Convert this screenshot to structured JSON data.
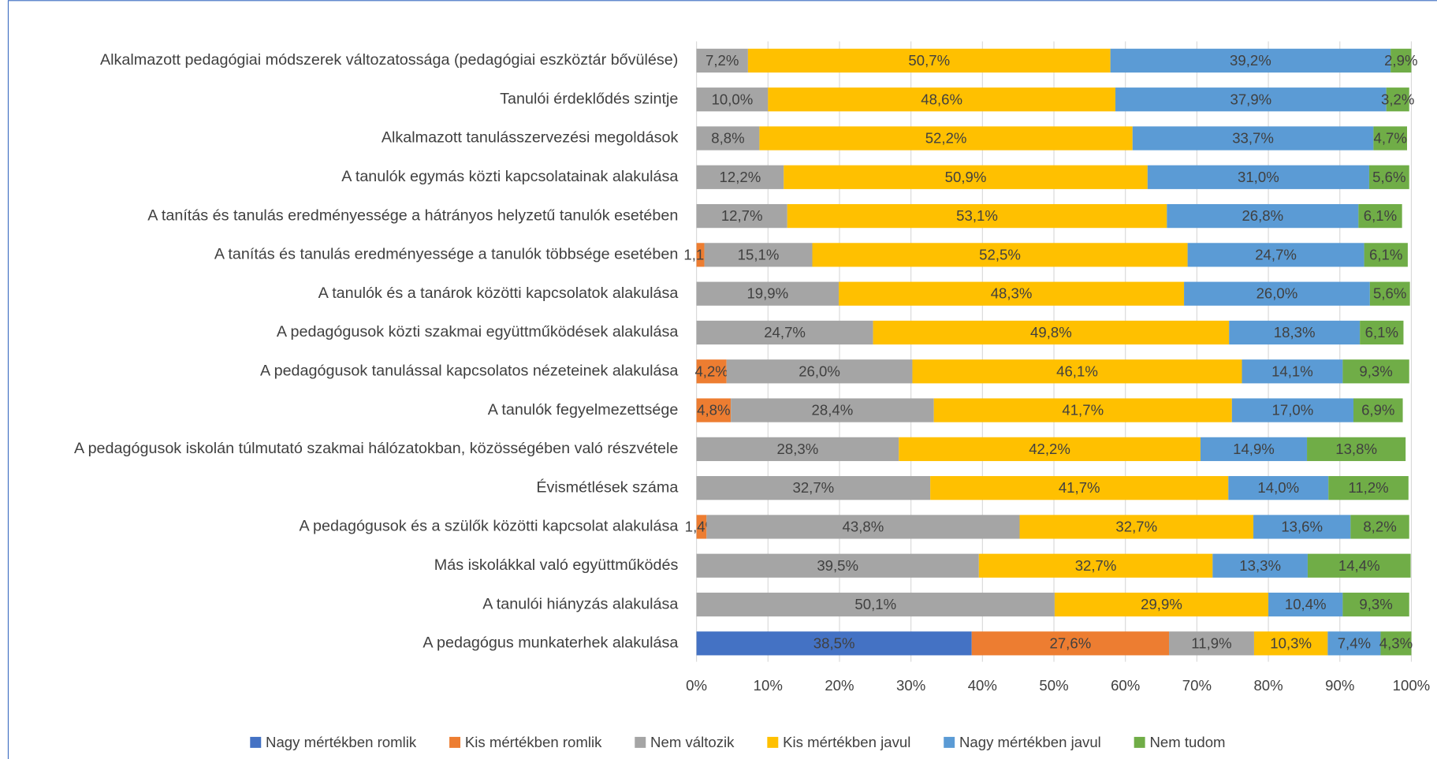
{
  "chart_data": {
    "type": "stacked_barh",
    "categories": [
      "Alkalmazott pedagógiai módszerek változatossága (pedagógiai eszköztár bővülése)",
      "Tanulói érdeklődés szintje",
      "Alkalmazott tanulásszervezési megoldások",
      "A tanulók egymás közti kapcsolatainak alakulása",
      "A tanítás és tanulás eredményessége a hátrányos helyzetű tanulók esetében",
      "A tanítás és tanulás eredményessége a tanulók többsége esetében",
      "A tanulók és a tanárok közötti kapcsolatok alakulása",
      "A pedagógusok közti szakmai együttműködések alakulása",
      "A pedagógusok tanulással kapcsolatos nézeteinek alakulása",
      "A tanulók fegyelmezettsége",
      "A pedagógusok iskolán túlmutató szakmai hálózatokban, közösségében való részvétele",
      "Évismétlések száma",
      "A pedagógusok és a szülők közötti kapcsolat alakulása",
      "Más iskolákkal való együttműködés",
      "A tanulói hiányzás alakulása",
      "A pedagógus munkaterhek alakulása"
    ],
    "series": [
      {
        "name": "Nagy mértékben romlik",
        "color": "#4472c4",
        "values": [
          null,
          null,
          null,
          null,
          null,
          null,
          null,
          null,
          null,
          null,
          null,
          null,
          null,
          null,
          null,
          38.5
        ],
        "value_labels": [
          null,
          null,
          null,
          null,
          null,
          null,
          null,
          null,
          null,
          null,
          null,
          null,
          null,
          null,
          null,
          "38,5%"
        ]
      },
      {
        "name": "Kis mértékben romlik",
        "color": "#ed7d31",
        "values": [
          null,
          null,
          null,
          null,
          null,
          1.1,
          null,
          null,
          4.2,
          4.8,
          null,
          null,
          1.4,
          null,
          null,
          27.6
        ],
        "value_labels": [
          null,
          null,
          null,
          null,
          null,
          "1,1%",
          null,
          null,
          "4,2%",
          "4,8%",
          null,
          null,
          "1,4%",
          null,
          null,
          "27,6%"
        ]
      },
      {
        "name": "Nem változik",
        "color": "#a5a5a5",
        "values": [
          7.2,
          10.0,
          8.8,
          12.2,
          12.7,
          15.1,
          19.9,
          24.7,
          26.0,
          28.4,
          28.3,
          32.7,
          43.8,
          39.5,
          50.1,
          11.9
        ],
        "value_labels": [
          "7,2%",
          "10,0%",
          "8,8%",
          "12,2%",
          "12,7%",
          "15,1%",
          "19,9%",
          "24,7%",
          "26,0%",
          "28,4%",
          "28,3%",
          "32,7%",
          "43,8%",
          "39,5%",
          "50,1%",
          "11,9%"
        ]
      },
      {
        "name": "Kis mértékben javul",
        "color": "#ffc000",
        "values": [
          50.7,
          48.6,
          52.2,
          50.9,
          53.1,
          52.5,
          48.3,
          49.8,
          46.1,
          41.7,
          42.2,
          41.7,
          32.7,
          32.7,
          29.9,
          10.3
        ],
        "value_labels": [
          "50,7%",
          "48,6%",
          "52,2%",
          "50,9%",
          "53,1%",
          "52,5%",
          "48,3%",
          "49,8%",
          "46,1%",
          "41,7%",
          "42,2%",
          "41,7%",
          "32,7%",
          "32,7%",
          "29,9%",
          "10,3%"
        ]
      },
      {
        "name": "Nagy mértékben javul",
        "color": "#5b9bd5",
        "values": [
          39.2,
          37.9,
          33.7,
          31.0,
          26.8,
          24.7,
          26.0,
          18.3,
          14.1,
          17.0,
          14.9,
          14.0,
          13.6,
          13.3,
          10.4,
          7.4
        ],
        "value_labels": [
          "39,2%",
          "37,9%",
          "33,7%",
          "31,0%",
          "26,8%",
          "24,7%",
          "26,0%",
          "18,3%",
          "14,1%",
          "17,0%",
          "14,9%",
          "14,0%",
          "13,6%",
          "13,3%",
          "10,4%",
          "7,4%"
        ]
      },
      {
        "name": "Nem tudom",
        "color": "#70ad47",
        "values": [
          2.9,
          3.2,
          4.7,
          5.6,
          6.1,
          6.1,
          5.6,
          6.1,
          9.3,
          6.9,
          13.8,
          11.2,
          8.2,
          14.4,
          9.3,
          4.3
        ],
        "value_labels": [
          "2,9%",
          "3,2%",
          "4,7%",
          "5,6%",
          "6,1%",
          "6,1%",
          "5,6%",
          "6,1%",
          "9,3%",
          "6,9%",
          "13,8%",
          "11,2%",
          "8,2%",
          "14,4%",
          "9,3%",
          "4,3%"
        ]
      }
    ],
    "xlim": [
      0,
      100
    ],
    "xticks": [
      {
        "value": 0,
        "label": "0%"
      },
      {
        "value": 10,
        "label": "10%"
      },
      {
        "value": 20,
        "label": "20%"
      },
      {
        "value": 30,
        "label": "30%"
      },
      {
        "value": 40,
        "label": "40%"
      },
      {
        "value": 50,
        "label": "50%"
      },
      {
        "value": 60,
        "label": "60%"
      },
      {
        "value": 70,
        "label": "70%"
      },
      {
        "value": 80,
        "label": "80%"
      },
      {
        "value": 90,
        "label": "90%"
      },
      {
        "value": 100,
        "label": "100%"
      }
    ],
    "grid": true,
    "legend": "bottom"
  }
}
